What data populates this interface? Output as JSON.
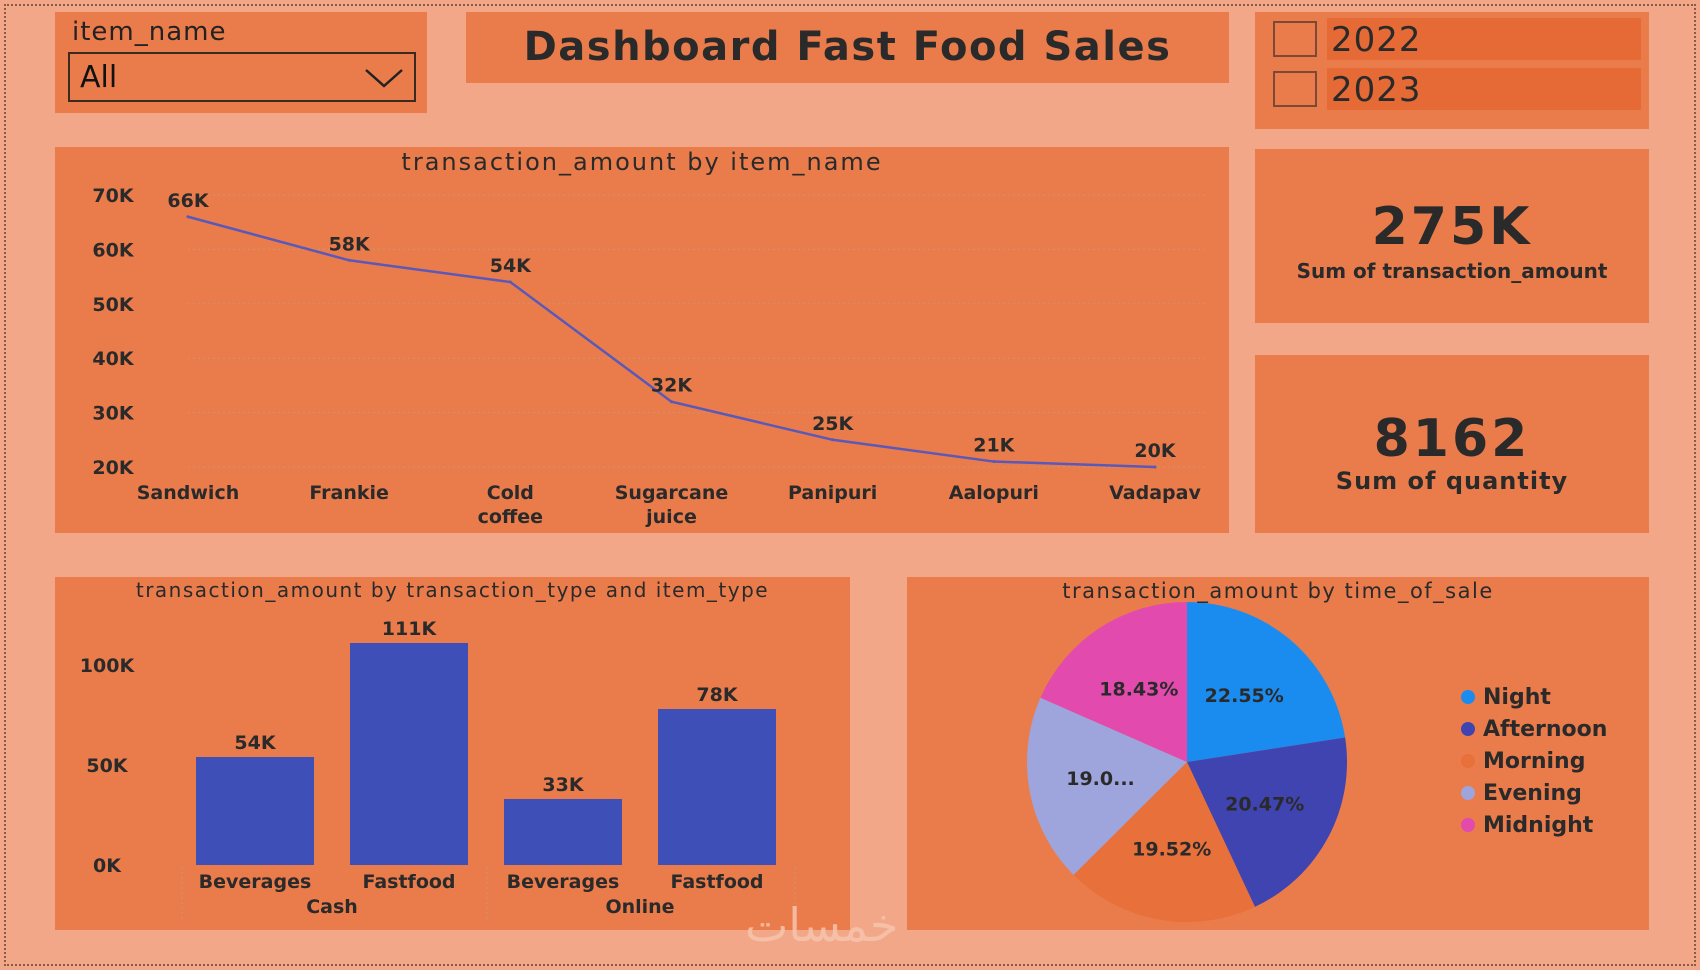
{
  "slicer": {
    "label": "item_name",
    "value": "All"
  },
  "title": "Dashboard Fast Food Sales",
  "years": [
    "2022",
    "2023"
  ],
  "cards": [
    {
      "value": "275K",
      "caption": "Sum of transaction_amount"
    },
    {
      "value": "8162",
      "caption": "Sum of quantity"
    }
  ],
  "colors": {
    "series": "#3f4fb8",
    "panel": "#ea7c4c",
    "background": "#f2a888"
  },
  "watermark": "خمسات",
  "chart_data": [
    {
      "type": "line",
      "title": "transaction_amount by item_name",
      "categories": [
        "Sandwich",
        "Frankie",
        "Cold coffee",
        "Sugarcane juice",
        "Panipuri",
        "Aalopuri",
        "Vadapav"
      ],
      "values": [
        66000,
        58000,
        54000,
        32000,
        25000,
        21000,
        20000
      ],
      "data_labels": [
        "66K",
        "58K",
        "54K",
        "32K",
        "25K",
        "21K",
        "20K"
      ],
      "y_ticks": [
        "20K",
        "30K",
        "40K",
        "50K",
        "60K",
        "70K"
      ],
      "ylim": [
        20000,
        70000
      ],
      "grid": true
    },
    {
      "type": "bar",
      "title": "transaction_amount by transaction_type and item_type",
      "groups": [
        {
          "name": "Cash",
          "categories": [
            "Beverages",
            "Fastfood"
          ],
          "values": [
            54000,
            111000
          ],
          "data_labels": [
            "54K",
            "111K"
          ]
        },
        {
          "name": "Online",
          "categories": [
            "Beverages",
            "Fastfood"
          ],
          "values": [
            33000,
            78000
          ],
          "data_labels": [
            "33K",
            "78K"
          ]
        }
      ],
      "y_ticks": [
        "0K",
        "50K",
        "100K"
      ],
      "ylim": [
        0,
        111000
      ]
    },
    {
      "type": "pie",
      "title": "transaction_amount by time_of_sale",
      "slices": [
        {
          "name": "Night",
          "value": 22.55,
          "label": "22.55%",
          "color": "#1a8cf0"
        },
        {
          "name": "Afternoon",
          "value": 20.47,
          "label": "20.47%",
          "color": "#3f44b0"
        },
        {
          "name": "Morning",
          "value": 19.52,
          "label": "19.52%",
          "color": "#e8703a"
        },
        {
          "name": "Evening",
          "value": 19.03,
          "label": "19.0...",
          "color": "#9ea4dc"
        },
        {
          "name": "Midnight",
          "value": 18.43,
          "label": "18.43%",
          "color": "#e24aae"
        }
      ],
      "legend": "right"
    }
  ]
}
